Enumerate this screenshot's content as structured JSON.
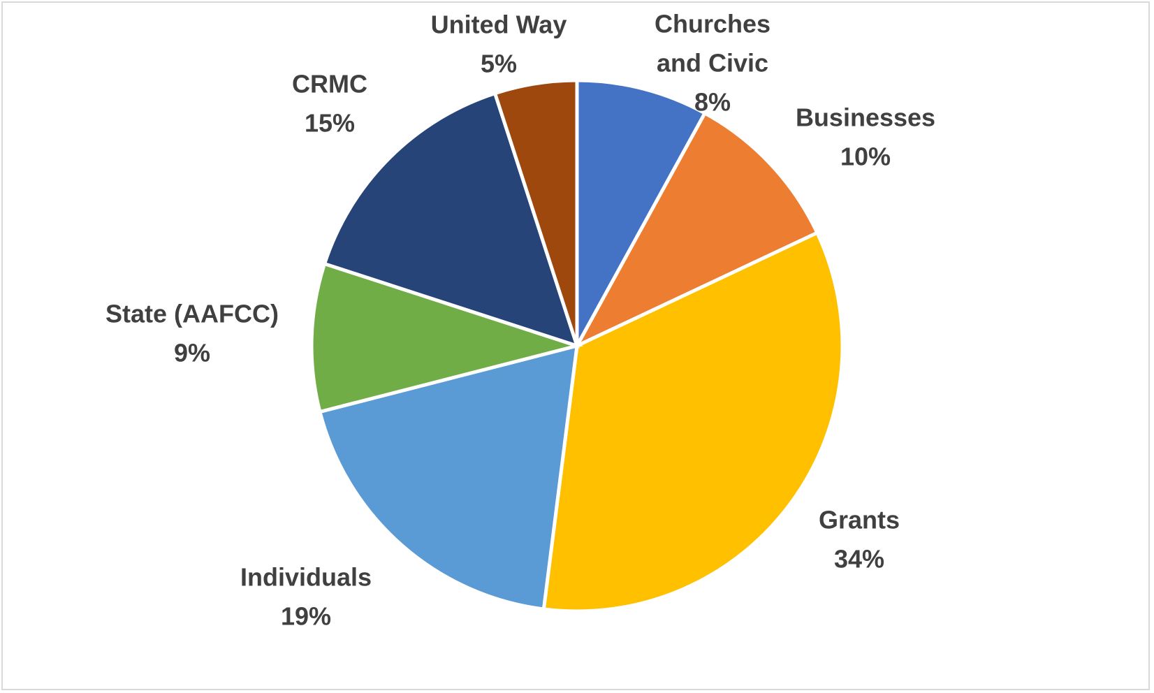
{
  "chart_data": {
    "type": "pie",
    "title": "",
    "start_angle_deg": 0,
    "direction": "clockwise",
    "legend": "none",
    "slices": [
      {
        "name": "Churches",
        "name2": "and Civic",
        "value": 8,
        "label": "8%",
        "color": "#4472C4"
      },
      {
        "name": "Businesses",
        "name2": "",
        "value": 10,
        "label": "10%",
        "color": "#ED7D31"
      },
      {
        "name": "Grants",
        "name2": "",
        "value": 34,
        "label": "34%",
        "color": "#FFC000"
      },
      {
        "name": "Individuals",
        "name2": "",
        "value": 19,
        "label": "19%",
        "color": "#5B9BD5"
      },
      {
        "name": "State (AAFCC)",
        "name2": "",
        "value": 9,
        "label": "9%",
        "color": "#70AD47"
      },
      {
        "name": "CRMC",
        "name2": "",
        "value": 15,
        "label": "15%",
        "color": "#264478"
      },
      {
        "name": "United Way",
        "name2": "",
        "value": 5,
        "label": "5%",
        "color": "#9E480E"
      }
    ]
  }
}
